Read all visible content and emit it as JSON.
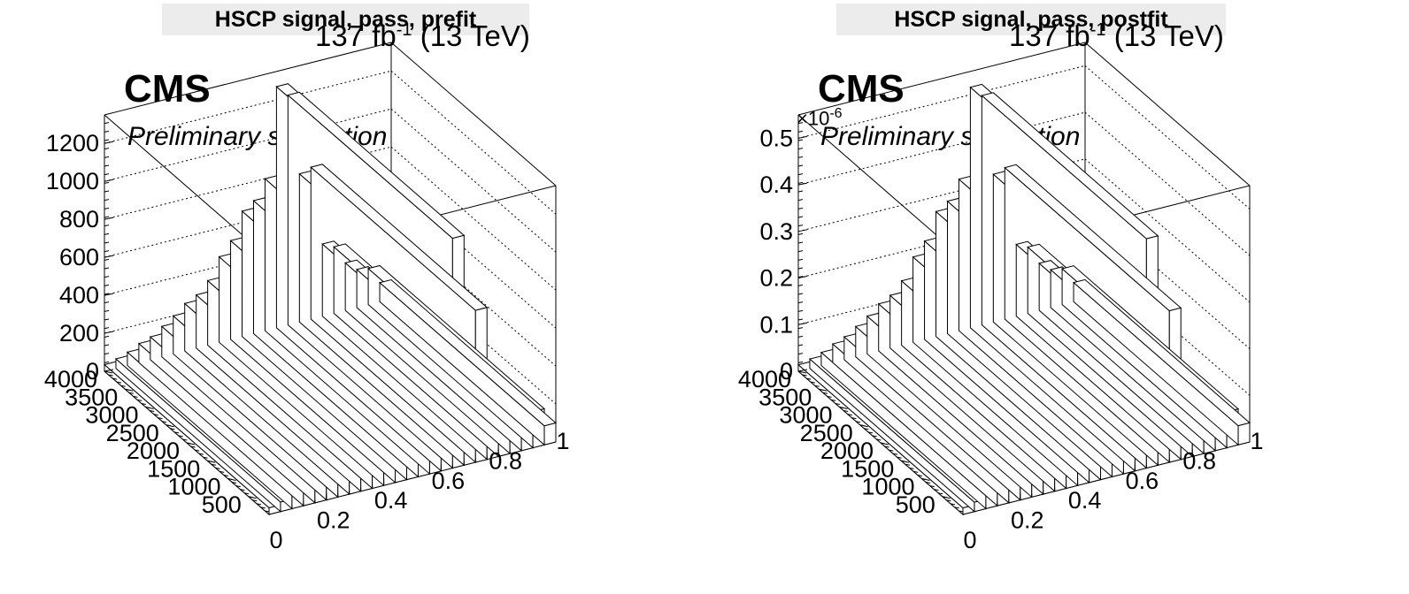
{
  "chart_data": [
    {
      "type": "lego3d",
      "title": "HSCP signal, pass, prefit",
      "lumi": "137 fb",
      "lumi_sup": "-1",
      "energy": "(13 TeV)",
      "experiment": "CMS",
      "subtitle": "Preliminary simulation",
      "x_ticks": [
        "0",
        "0.2",
        "0.4",
        "0.6",
        "0.8",
        "1"
      ],
      "y_ticks": [
        "500",
        "1000",
        "1500",
        "2000",
        "2500",
        "3000",
        "3500",
        "4000"
      ],
      "z_ticks": [
        "0",
        "200",
        "400",
        "600",
        "800",
        "1000",
        "1200"
      ],
      "z_exponent": "",
      "xlim": [
        0,
        1
      ],
      "ylim": [
        0,
        4000
      ],
      "zlim": [
        0,
        1350
      ],
      "z_values": [
        35,
        50,
        70,
        100,
        120,
        160,
        200,
        250,
        280,
        340,
        450,
        520,
        660,
        700,
        800,
        1270,
        1210,
        780,
        800,
        380,
        350,
        250,
        200,
        190,
        100
      ]
    },
    {
      "type": "lego3d",
      "title": "HSCP signal, pass, postfit",
      "lumi": "137 fb",
      "lumi_sup": "-1",
      "energy": "(13 TeV)",
      "experiment": "CMS",
      "subtitle": "Preliminary simulation",
      "x_ticks": [
        "0",
        "0.2",
        "0.4",
        "0.6",
        "0.8",
        "1"
      ],
      "y_ticks": [
        "500",
        "1000",
        "1500",
        "2000",
        "2500",
        "3000",
        "3500",
        "4000"
      ],
      "z_ticks": [
        "0",
        "0.1",
        "0.2",
        "0.3",
        "0.4",
        "0.5"
      ],
      "z_exponent": "-6",
      "xlim": [
        0,
        1
      ],
      "ylim": [
        0,
        4000
      ],
      "zlim": [
        0,
        0.55
      ],
      "z_values": [
        0.014,
        0.02,
        0.028,
        0.04,
        0.049,
        0.065,
        0.081,
        0.101,
        0.113,
        0.138,
        0.183,
        0.211,
        0.268,
        0.284,
        0.325,
        0.516,
        0.492,
        0.317,
        0.325,
        0.154,
        0.142,
        0.101,
        0.081,
        0.077,
        0.041
      ]
    }
  ]
}
